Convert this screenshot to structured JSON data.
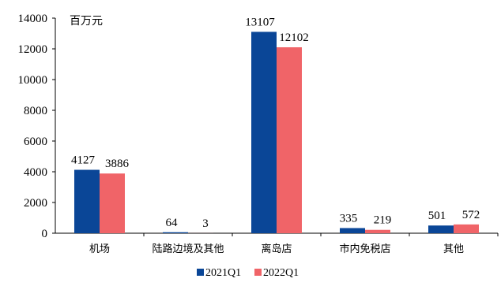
{
  "chart_data": {
    "type": "bar",
    "unit_label": "百万元",
    "categories": [
      "机场",
      "陆路边境及其他",
      "离岛店",
      "市内免税店",
      "其他"
    ],
    "series": [
      {
        "name": "2021Q1",
        "color": "#0a4697",
        "values": [
          4127,
          64,
          13107,
          335,
          501
        ]
      },
      {
        "name": "2022Q1",
        "color": "#f06468",
        "values": [
          3886,
          3,
          12102,
          219,
          572
        ]
      }
    ],
    "data_labels": [
      [
        "4127",
        "64",
        "13107",
        "335",
        "501"
      ],
      [
        "3886",
        "3",
        "12102",
        "219",
        "572"
      ]
    ],
    "yticks": [
      0,
      2000,
      4000,
      6000,
      8000,
      10000,
      12000,
      14000
    ],
    "ylim": [
      0,
      14000
    ],
    "grid": false,
    "legend_position": "bottom-center"
  }
}
